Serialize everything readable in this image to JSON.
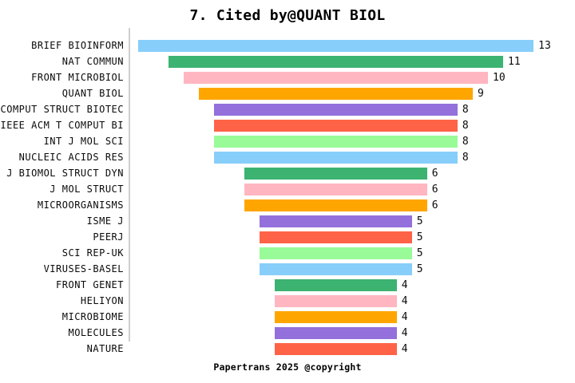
{
  "title": "7. Cited by@QUANT BIOL",
  "footer": "Papertrans 2025 @copyright",
  "colors": {
    "background": "#ffffff",
    "axis_line": "#cfcfcf",
    "text": "#0a0a0a",
    "palette": [
      "#87CEFA",
      "#3CB371",
      "#FFB6C1",
      "#FFA500",
      "#9370DB",
      "#FF6347",
      "#98FB98"
    ]
  },
  "chart_data": {
    "type": "bar",
    "orientation": "horizontal-centered-funnel",
    "title": "7. Cited by@QUANT BIOL",
    "xlabel": "",
    "ylabel": "",
    "xlim": [
      0,
      13
    ],
    "grid": false,
    "legend": false,
    "value_labels_shown": true,
    "categories": [
      "BRIEF BIOINFORM",
      "NAT COMMUN",
      "FRONT MICROBIOL",
      "QUANT BIOL",
      "COMPUT STRUCT BIOTEC",
      "IEEE ACM T COMPUT BI",
      "INT J MOL SCI",
      "NUCLEIC ACIDS RES",
      "J BIOMOL STRUCT DYN",
      "J MOL STRUCT",
      "MICROORGANISMS",
      "ISME J",
      "PEERJ",
      "SCI REP-UK",
      "VIRUSES-BASEL",
      "FRONT GENET",
      "HELIYON",
      "MICROBIOME",
      "MOLECULES",
      "NATURE"
    ],
    "values": [
      13,
      11,
      10,
      9,
      8,
      8,
      8,
      8,
      6,
      6,
      6,
      5,
      5,
      5,
      5,
      4,
      4,
      4,
      4,
      4
    ],
    "bar_colors": [
      "#87CEFA",
      "#3CB371",
      "#FFB6C1",
      "#FFA500",
      "#9370DB",
      "#FF6347",
      "#98FB98",
      "#87CEFA",
      "#3CB371",
      "#FFB6C1",
      "#FFA500",
      "#9370DB",
      "#FF6347",
      "#98FB98",
      "#87CEFA",
      "#3CB371",
      "#FFB6C1",
      "#FFA500",
      "#9370DB",
      "#FF6347"
    ]
  }
}
